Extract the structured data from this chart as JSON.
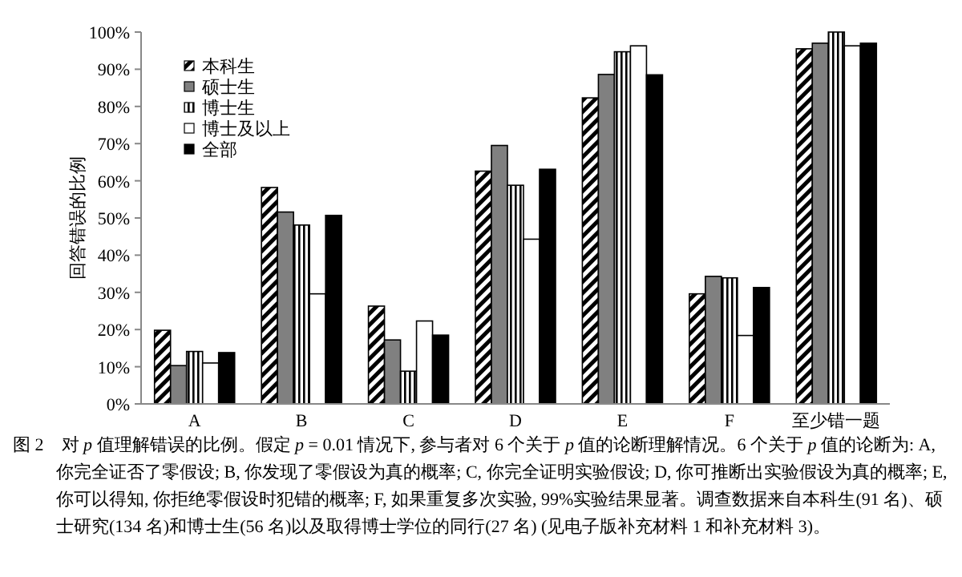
{
  "chart_data": {
    "type": "bar",
    "ylabel": "回答错误的比例",
    "categories": [
      "A",
      "B",
      "C",
      "D",
      "E",
      "F",
      "至少错一题"
    ],
    "series": [
      {
        "name": "本科生",
        "color": "#000000",
        "values": [
          19.8,
          58.2,
          26.3,
          62.6,
          82.3,
          29.6,
          95.5
        ]
      },
      {
        "name": "硕士生",
        "color": "#808080",
        "values": [
          10.3,
          51.6,
          17.2,
          69.5,
          88.6,
          34.3,
          97.0
        ]
      },
      {
        "name": "博士生",
        "color": "#000000",
        "values": [
          14.1,
          48.1,
          8.8,
          58.8,
          94.7,
          33.9,
          100
        ]
      },
      {
        "name": "博士及以上",
        "color": "#ffffff",
        "values": [
          11,
          29.6,
          22.3,
          44.3,
          96.3,
          18.4,
          96.3
        ]
      },
      {
        "name": "全部",
        "color": "#000000",
        "values": [
          13.8,
          50.7,
          18.5,
          63.1,
          88.5,
          31.3,
          97.0
        ]
      }
    ],
    "ylim": [
      0,
      100
    ],
    "yticks": [
      {
        "value": 0,
        "label": "0%"
      },
      {
        "value": 10,
        "label": "10%"
      },
      {
        "value": 20,
        "label": "20%"
      },
      {
        "value": 30,
        "label": "30%"
      },
      {
        "value": 40,
        "label": "40%"
      },
      {
        "value": 50,
        "label": "50%"
      },
      {
        "value": 60,
        "label": "60%"
      },
      {
        "value": 70,
        "label": "70%"
      },
      {
        "value": 80,
        "label": "80%"
      },
      {
        "value": 90,
        "label": "90%"
      },
      {
        "value": 100,
        "label": "100%"
      }
    ],
    "legend": "top left",
    "grid": false,
    "annotations": [
      "图 2　对 *p* 值理解错误的比例。假定 *p* = 0.01 情况下, 参与者对 6 个关于 *p* 值的论断理解情况。6 个关于 *p* 值的论断为: A, 你完全证否了零假设; B, 你发现了零假设为真的概率; C, 你完全证明实验假设; D, 你可推断出实验假设为真的概率; E, 你可以得知, 你拒绝零假设时犯错的概率; F, 如果重复多次实验, 99%实验结果显著。调查数据来自本科生(91 名)、硕士研究(134 名)和博士生(56 名)以及取得博士学位的同行(27 名) (见电子版补充材料 1 和补充材料 3)。"
    ]
  }
}
